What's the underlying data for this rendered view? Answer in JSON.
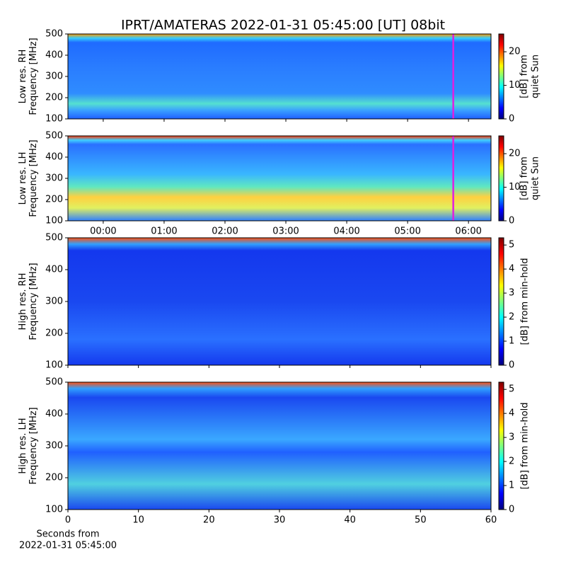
{
  "title": "IPRT/AMATERAS 2022-01-31 05:45:00 [UT]   08bit",
  "chart_data": [
    {
      "type": "heatmap",
      "ylabel": [
        "Low res. RH",
        "Frequency [MHz]"
      ],
      "ylim": [
        100,
        500
      ],
      "yticks": [
        100,
        200,
        300,
        400,
        500
      ],
      "xlim": [
        -0.58,
        6.37
      ],
      "xticks": [
        0,
        1,
        2,
        3,
        4,
        5,
        6
      ],
      "xticklabels": false,
      "marker_x": 5.75,
      "marker_color": "#e020e0",
      "colorbar": {
        "label": [
          "[dB] from",
          "quiet Sun"
        ],
        "lim": [
          0,
          25.3
        ],
        "ticks": [
          0,
          10,
          20
        ]
      }
    },
    {
      "type": "heatmap",
      "ylabel": [
        "Low res. LH",
        "Frequency [MHz]"
      ],
      "ylim": [
        100,
        500
      ],
      "yticks": [
        100,
        200,
        300,
        400,
        500
      ],
      "xlim": [
        -0.58,
        6.37
      ],
      "xticks": [
        {
          "value": 0,
          "label": "00:00"
        },
        {
          "value": 1,
          "label": "01:00"
        },
        {
          "value": 2,
          "label": "02:00"
        },
        {
          "value": 3,
          "label": "03:00"
        },
        {
          "value": 4,
          "label": "04:00"
        },
        {
          "value": 5,
          "label": "05:00"
        },
        {
          "value": 6,
          "label": "06:00"
        }
      ],
      "xticklabels": true,
      "marker_x": 5.75,
      "marker_color": "#e020e0",
      "colorbar": {
        "label": [
          "[dB] from",
          "quiet Sun"
        ],
        "lim": [
          0,
          25.3
        ],
        "ticks": [
          0,
          10,
          20
        ]
      }
    },
    {
      "type": "heatmap",
      "ylabel": [
        "High res. RH",
        "Frequency [MHz]"
      ],
      "ylim": [
        100,
        500
      ],
      "yticks": [
        100,
        200,
        300,
        400,
        500
      ],
      "xlim": [
        0,
        60
      ],
      "xticks": [
        0,
        10,
        20,
        30,
        40,
        50,
        60
      ],
      "xticklabels": false,
      "colorbar": {
        "label": [
          "[dB] from min-hold"
        ],
        "lim": [
          0,
          5.3
        ],
        "ticks": [
          0,
          1,
          2,
          3,
          4,
          5
        ]
      }
    },
    {
      "type": "heatmap",
      "ylabel": [
        "High res. LH",
        "Frequency [MHz]"
      ],
      "ylim": [
        100,
        500
      ],
      "yticks": [
        100,
        200,
        300,
        400,
        500
      ],
      "xlim": [
        0,
        60
      ],
      "xticks": [
        0,
        10,
        20,
        30,
        40,
        50,
        60
      ],
      "xticklabels": true,
      "xlabel": [
        "Seconds from",
        "2022-01-31 05:45:00"
      ],
      "colorbar": {
        "label": [
          "[dB] from min-hold"
        ],
        "lim": [
          0,
          5.3
        ],
        "ticks": [
          0,
          1,
          2,
          3,
          4,
          5
        ]
      }
    }
  ]
}
